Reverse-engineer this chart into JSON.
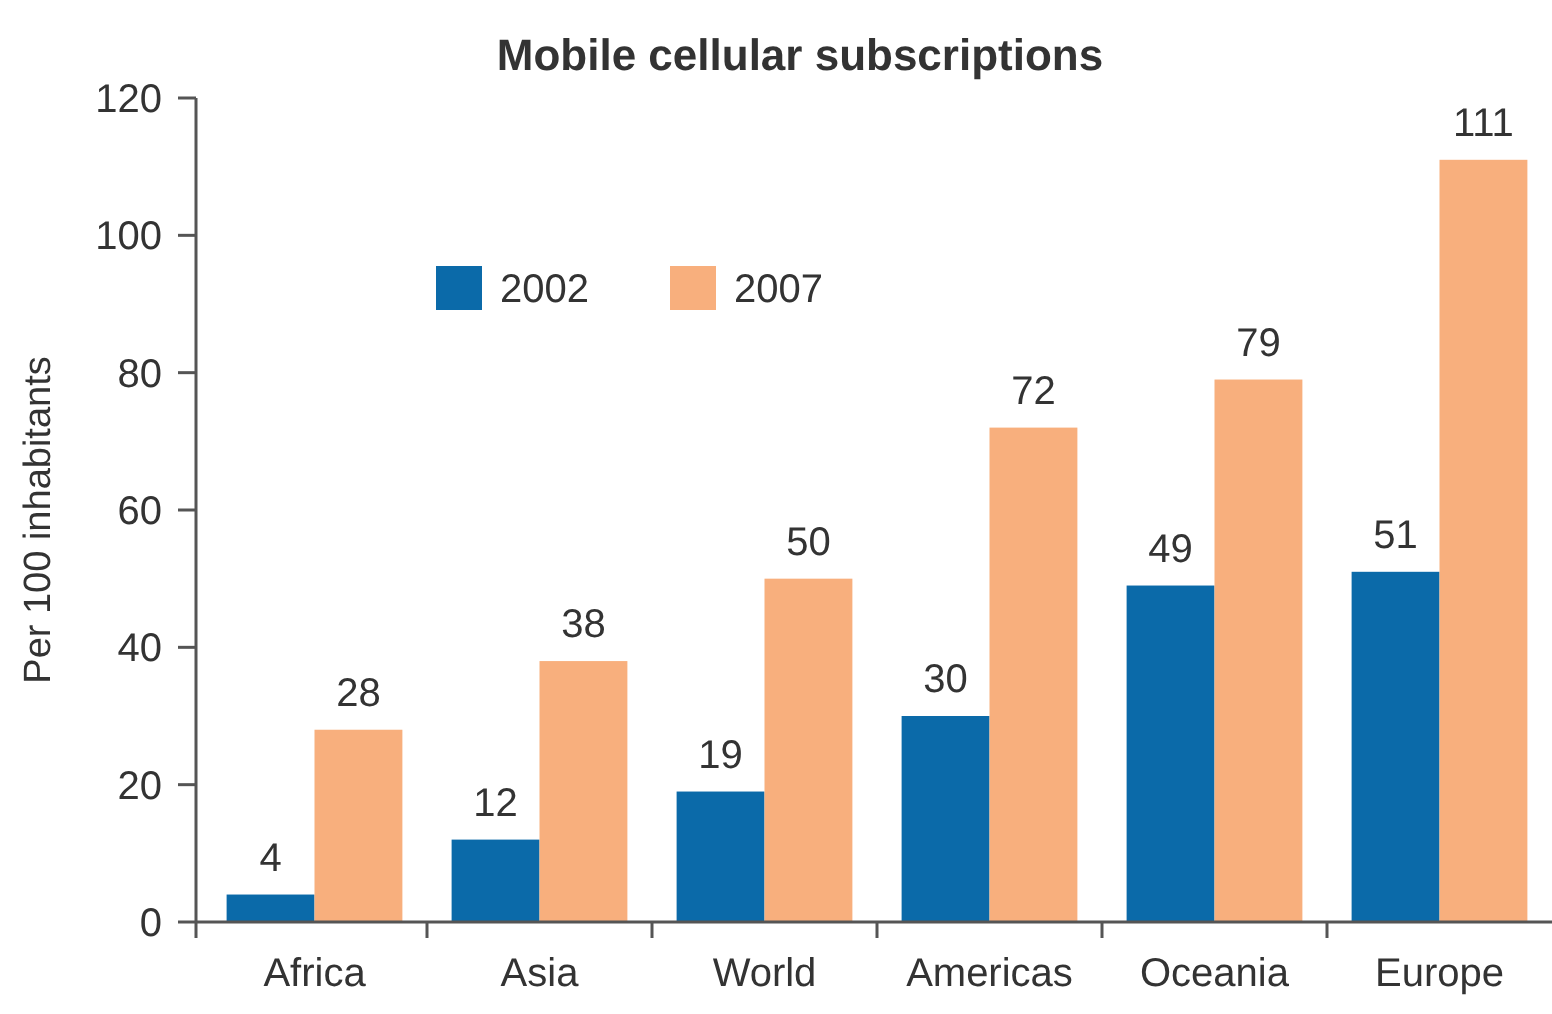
{
  "chart_data": {
    "type": "bar",
    "title": "Mobile cellular subscriptions",
    "ylabel": "Per 100 inhabitants",
    "categories": [
      "Africa",
      "Asia",
      "World",
      "Americas",
      "Oceania",
      "Europe"
    ],
    "series": [
      {
        "name": "2002",
        "color": "#0b6aa9",
        "values": [
          4,
          12,
          19,
          30,
          49,
          51
        ]
      },
      {
        "name": "2007",
        "color": "#f8af7d",
        "values": [
          28,
          38,
          50,
          72,
          79,
          111
        ]
      }
    ],
    "ylim": [
      0,
      120
    ],
    "yticks": [
      0,
      20,
      40,
      60,
      80,
      100,
      120
    ],
    "legend": "top left",
    "data_labels": true
  }
}
